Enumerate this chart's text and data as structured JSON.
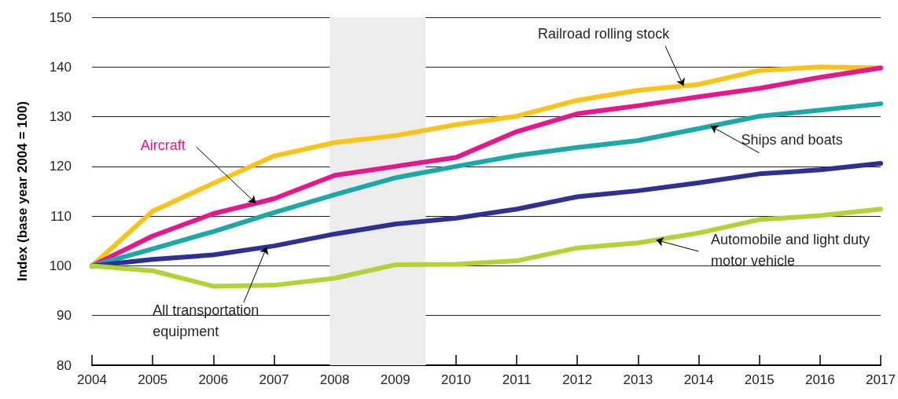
{
  "chart_data": {
    "type": "line",
    "ylabel": "Index (base year 2004 = 100)",
    "x": [
      2004,
      2005,
      2006,
      2007,
      2008,
      2009,
      2010,
      2011,
      2012,
      2013,
      2014,
      2015,
      2016,
      2017
    ],
    "series": [
      {
        "name": "Railroad rolling stock",
        "color": "#fdc218",
        "values": [
          100,
          111,
          116.6,
          122.1,
          124.8,
          126.2,
          128.4,
          130.1,
          133.3,
          135.3,
          136.5,
          139.3,
          140,
          139.8
        ]
      },
      {
        "name": "Aircraft",
        "color": "#e8168c",
        "values": [
          100,
          106,
          110.5,
          113.5,
          118.2,
          120,
          121.8,
          127,
          130.6,
          132.2,
          134,
          135.7,
          137.9,
          139.8
        ]
      },
      {
        "name": "Ships and boats",
        "color": "#1aa8a8",
        "values": [
          100,
          103.4,
          106.9,
          110.7,
          114.3,
          117.7,
          120,
          122.2,
          123.8,
          125.2,
          127.6,
          130.1,
          131.3,
          132.6
        ]
      },
      {
        "name": "All transportation equipment",
        "color": "#2e3192",
        "values": [
          100,
          101.3,
          102.2,
          104,
          106.4,
          108.4,
          109.6,
          111.4,
          113.9,
          115.1,
          116.7,
          118.5,
          119.3,
          120.6
        ]
      },
      {
        "name": "Automobile and light duty motor vehicle",
        "color": "#b2d235",
        "values": [
          100,
          99,
          95.9,
          96.1,
          97.5,
          100.2,
          100.3,
          101,
          103.6,
          104.6,
          106.6,
          109.3,
          110.1,
          111.4
        ]
      }
    ],
    "xlim": [
      2004,
      2017
    ],
    "xticks": [
      2004,
      2005,
      2006,
      2007,
      2008,
      2009,
      2010,
      2011,
      2012,
      2013,
      2014,
      2015,
      2016,
      2017
    ],
    "ylim": [
      80,
      150
    ],
    "yticks": [
      80,
      90,
      100,
      110,
      120,
      130,
      140,
      150
    ],
    "bands": [
      {
        "axis": "x",
        "from": 2007.92,
        "to": 2009.5,
        "color": "#ececec"
      }
    ],
    "grid": "y",
    "marker": "none",
    "line_style": "solid"
  }
}
